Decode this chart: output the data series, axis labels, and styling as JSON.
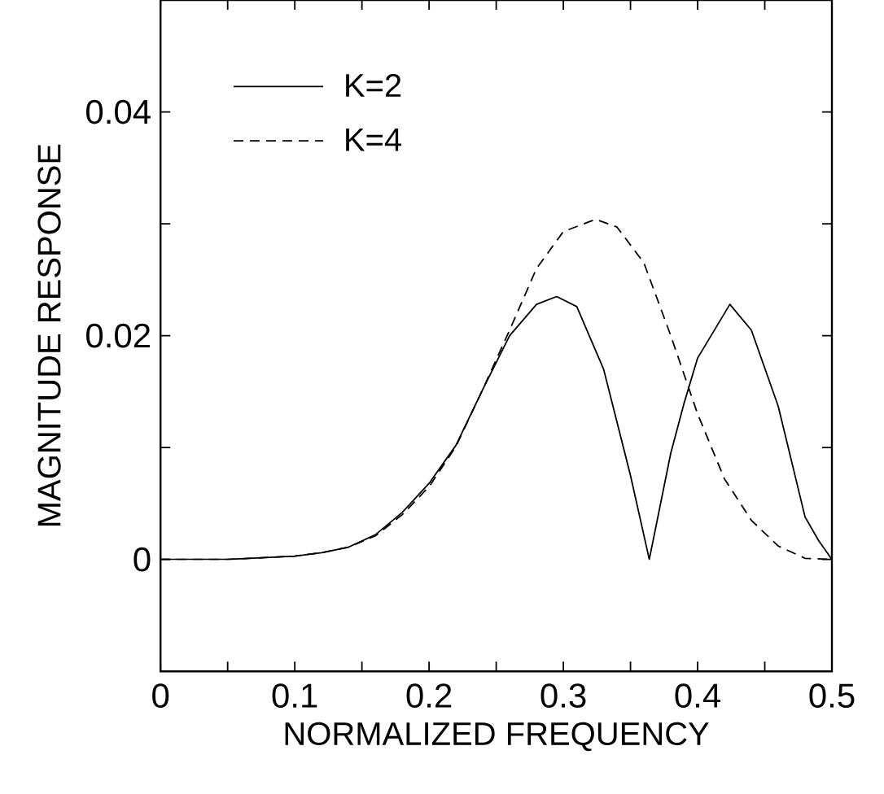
{
  "chart_data": {
    "type": "line",
    "xlabel": "NORMALIZED FREQUENCY",
    "ylabel": "MAGNITUDE RESPONSE",
    "xlim": [
      0,
      0.5
    ],
    "ylim": [
      -0.01,
      0.05
    ],
    "xticks": [
      0,
      {
        "value": 0.05,
        "label": null
      },
      0.1,
      {
        "value": 0.15,
        "label": null
      },
      0.2,
      {
        "value": 0.25,
        "label": null
      },
      0.3,
      {
        "value": 0.35,
        "label": null
      },
      0.4,
      {
        "value": 0.45,
        "label": null
      },
      0.5
    ],
    "yticks": [
      {
        "value": -0.01,
        "label": null
      },
      0,
      {
        "value": 0.01,
        "label": null
      },
      0.02,
      {
        "value": 0.03,
        "label": null
      },
      0.04
    ],
    "grid": false,
    "legend": "top left",
    "marker": "none",
    "series": [
      {
        "name": "K=2",
        "color": "#000000",
        "line_style": "solid",
        "x": [
          0,
          0.05,
          0.1,
          0.12,
          0.14,
          0.16,
          0.18,
          0.2,
          0.22,
          0.24,
          0.26,
          0.28,
          0.295,
          0.31,
          0.33,
          0.35,
          0.364,
          0.38,
          0.39,
          0.4,
          0.424,
          0.44,
          0.46,
          0.48,
          0.49,
          0.5
        ],
        "values": [
          0,
          0,
          0.0003,
          0.0006,
          0.0011,
          0.0022,
          0.0042,
          0.0068,
          0.0102,
          0.0152,
          0.02,
          0.0228,
          0.0235,
          0.0226,
          0.017,
          0.0075,
          0,
          0.0095,
          0.014,
          0.018,
          0.0228,
          0.0205,
          0.0137,
          0.0038,
          0.0017,
          0
        ]
      },
      {
        "name": "K=4",
        "color": "#000000",
        "line_style": "dashed",
        "x": [
          0,
          0.05,
          0.1,
          0.12,
          0.14,
          0.16,
          0.18,
          0.2,
          0.22,
          0.24,
          0.26,
          0.28,
          0.3,
          0.324,
          0.34,
          0.36,
          0.38,
          0.4,
          0.42,
          0.44,
          0.46,
          0.48,
          0.5
        ],
        "values": [
          0,
          0,
          0.0003,
          0.0006,
          0.0011,
          0.0021,
          0.004,
          0.0065,
          0.0101,
          0.0152,
          0.0205,
          0.026,
          0.0293,
          0.0304,
          0.0297,
          0.0265,
          0.02,
          0.013,
          0.0072,
          0.0035,
          0.0012,
          0.0001,
          0
        ]
      }
    ]
  }
}
